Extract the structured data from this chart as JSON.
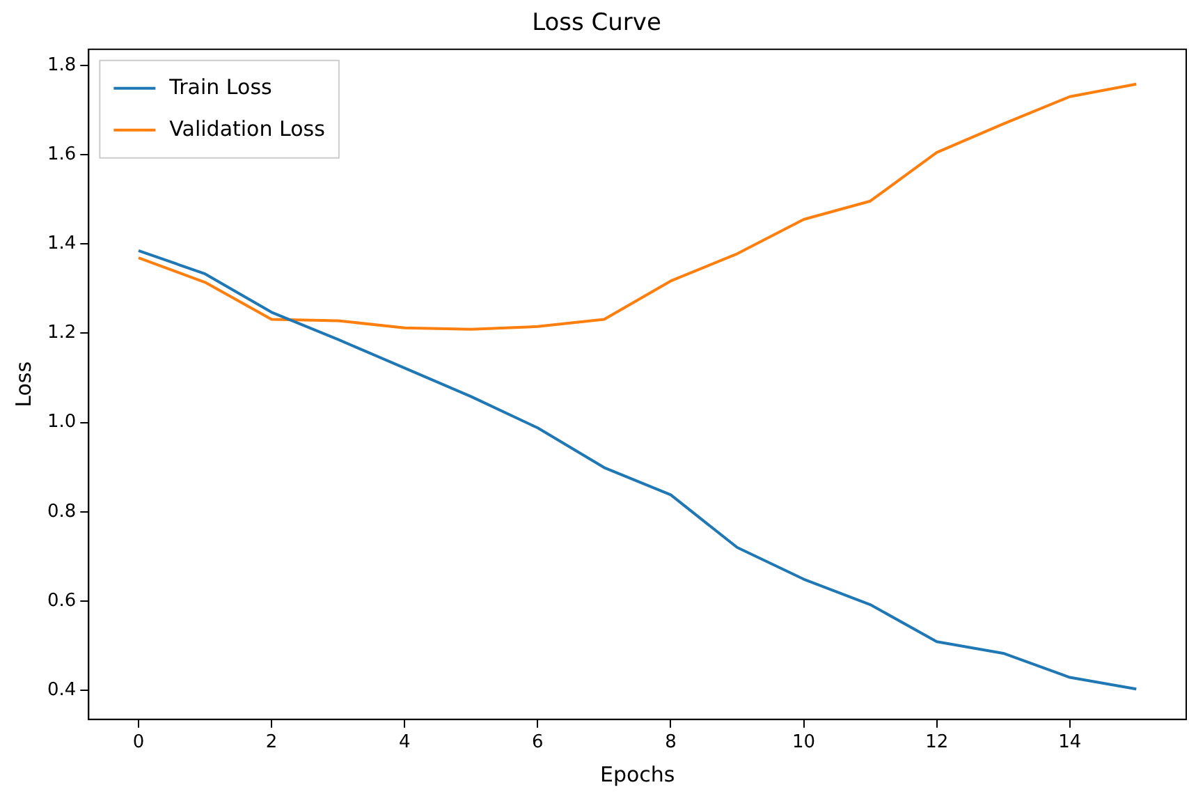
{
  "chart_data": {
    "type": "line",
    "title": "Loss Curve",
    "xlabel": "Epochs",
    "ylabel": "Loss",
    "x": [
      0,
      1,
      2,
      3,
      4,
      5,
      6,
      7,
      8,
      9,
      10,
      11,
      12,
      13,
      14,
      15
    ],
    "series": [
      {
        "name": "Train Loss",
        "color": "#1f77b4",
        "values": [
          1.385,
          1.333,
          1.247,
          1.186,
          1.122,
          1.058,
          0.988,
          0.899,
          0.838,
          0.72,
          0.649,
          0.592,
          0.509,
          0.483,
          0.429,
          0.403
        ]
      },
      {
        "name": "Validation Loss",
        "color": "#ff7f0e",
        "values": [
          1.369,
          1.314,
          1.231,
          1.228,
          1.212,
          1.209,
          1.215,
          1.231,
          1.317,
          1.378,
          1.455,
          1.496,
          1.605,
          1.669,
          1.73,
          1.758
        ]
      }
    ],
    "xlim": [
      -0.75,
      15.75
    ],
    "xticks": [
      0,
      2,
      4,
      6,
      8,
      10,
      12,
      14
    ],
    "ylim": [
      0.335,
      1.836
    ],
    "yticks": [
      0.4,
      0.6,
      0.8,
      {
        "value": 1,
        "label": "1.0"
      },
      1.2,
      1.4,
      1.6,
      1.8
    ],
    "legend": "top left",
    "grid": false,
    "marker": "none",
    "line_style": "solid"
  }
}
